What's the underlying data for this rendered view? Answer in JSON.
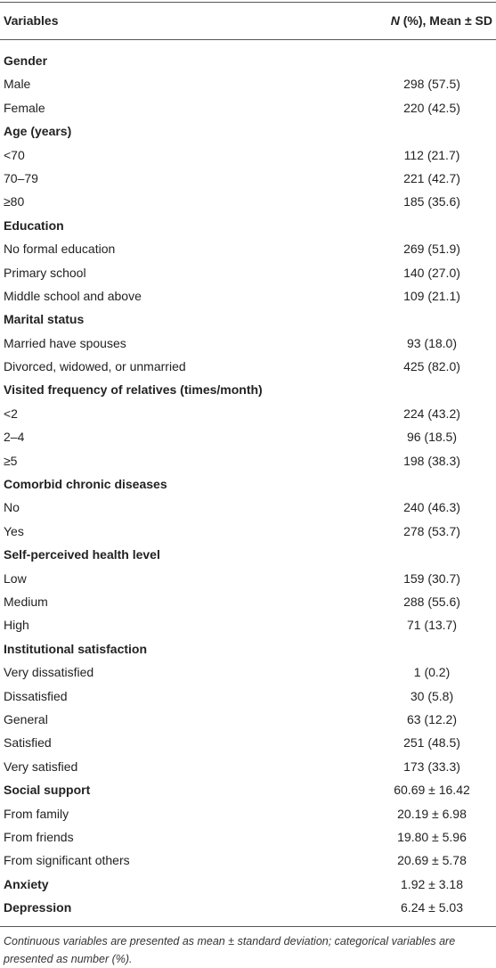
{
  "table": {
    "header": {
      "label": "Variables",
      "value_italic": "N",
      "value_rest": " (%), Mean ± SD"
    },
    "rows": [
      {
        "label": "Gender",
        "bold": true
      },
      {
        "label": "Male",
        "value": "298 (57.5)"
      },
      {
        "label": "Female",
        "value": "220 (42.5)"
      },
      {
        "label": "Age (years)",
        "bold": true
      },
      {
        "label": "<70",
        "value": "112 (21.7)"
      },
      {
        "label": "70–79",
        "value": "221 (42.7)"
      },
      {
        "label": "≥80",
        "value": "185 (35.6)"
      },
      {
        "label": "Education",
        "bold": true
      },
      {
        "label": "No formal education",
        "value": "269 (51.9)"
      },
      {
        "label": "Primary school",
        "value": "140 (27.0)"
      },
      {
        "label": "Middle school and above",
        "value": "109 (21.1)"
      },
      {
        "label": "Marital status",
        "bold": true
      },
      {
        "label": "Married have spouses",
        "value": "93 (18.0)"
      },
      {
        "label": "Divorced, widowed, or unmarried",
        "value": "425 (82.0)"
      },
      {
        "label": "Visited frequency of relatives (times/month)",
        "bold": true
      },
      {
        "label": "<2",
        "value": "224 (43.2)"
      },
      {
        "label": "2–4",
        "value": "96 (18.5)"
      },
      {
        "label": "≥5",
        "value": "198 (38.3)"
      },
      {
        "label": "Comorbid chronic diseases",
        "bold": true
      },
      {
        "label": "No",
        "value": "240 (46.3)"
      },
      {
        "label": "Yes",
        "value": "278 (53.7)"
      },
      {
        "label": "Self-perceived health level",
        "bold": true
      },
      {
        "label": "Low",
        "value": "159 (30.7)"
      },
      {
        "label": "Medium",
        "value": "288 (55.6)"
      },
      {
        "label": "High",
        "value": "71 (13.7)"
      },
      {
        "label": "Institutional satisfaction",
        "bold": true
      },
      {
        "label": "Very dissatisfied",
        "value": "1 (0.2)"
      },
      {
        "label": "Dissatisfied",
        "value": "30 (5.8)"
      },
      {
        "label": "General",
        "value": "63 (12.2)"
      },
      {
        "label": "Satisfied",
        "value": "251 (48.5)"
      },
      {
        "label": "Very satisfied",
        "value": "173 (33.3)"
      },
      {
        "label": "Social support",
        "bold": true,
        "value": "60.69 ± 16.42"
      },
      {
        "label": "From family",
        "value": "20.19 ± 6.98"
      },
      {
        "label": "From friends",
        "value": "19.80 ± 5.96"
      },
      {
        "label": "From significant others",
        "value": "20.69 ± 5.78"
      },
      {
        "label": "Anxiety",
        "bold": true,
        "value": "1.92 ± 3.18"
      },
      {
        "label": "Depression",
        "bold": true,
        "value": "6.24 ± 5.03"
      }
    ],
    "footnote": "Continuous variables are presented as mean ± standard deviation; categorical variables are presented as number (%)."
  }
}
